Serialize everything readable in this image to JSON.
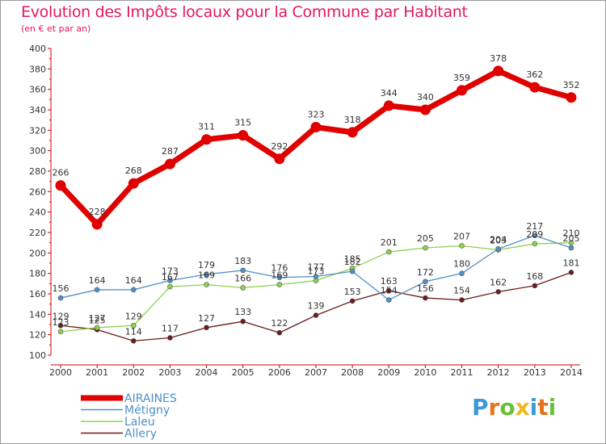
{
  "title": "Evolution des Impôts locaux pour la Commune par Habitant",
  "subtitle": "(en € et par an)",
  "logo": {
    "text": "Proxiti",
    "colors": [
      "#3a9ad9",
      "#e8721c",
      "#6cbf3a",
      "#f0b820",
      "#3a9ad9",
      "#e8721c",
      "#6cbf3a"
    ]
  },
  "chart_data": {
    "type": "line",
    "title": "Evolution des Impôts locaux pour la Commune par Habitant",
    "subtitle": "(en € et par an)",
    "xlabel": "",
    "ylabel": "",
    "ylim": [
      100,
      400
    ],
    "yticks": [
      100,
      120,
      140,
      160,
      180,
      200,
      220,
      240,
      260,
      280,
      300,
      320,
      340,
      360,
      380,
      400
    ],
    "grid": false,
    "legend_position": "bottom-left",
    "categories": [
      "2000",
      "2001",
      "2002",
      "2003",
      "2004",
      "2005",
      "2006",
      "2007",
      "2008",
      "2009",
      "2010",
      "2011",
      "2012",
      "2013",
      "2014"
    ],
    "series": [
      {
        "name": "AIRAINES",
        "color": "#e00000",
        "values": [
          266,
          228,
          268,
          287,
          311,
          315,
          292,
          323,
          318,
          344,
          340,
          359,
          378,
          362,
          352
        ]
      },
      {
        "name": "Métigny",
        "color": "#4f90c8",
        "values": [
          156,
          164,
          164,
          173,
          179,
          183,
          176,
          177,
          182,
          154,
          172,
          180,
          204,
          217,
          205
        ]
      },
      {
        "name": "Laleu",
        "color": "#8fd14f",
        "values": [
          123,
          127,
          129,
          167,
          169,
          166,
          169,
          173,
          185,
          201,
          205,
          207,
          203,
          209,
          210
        ]
      },
      {
        "name": "Allery",
        "color": "#6b1b1b",
        "values": [
          129,
          125,
          114,
          117,
          127,
          133,
          122,
          139,
          153,
          163,
          156,
          154,
          162,
          168,
          181
        ]
      }
    ]
  }
}
